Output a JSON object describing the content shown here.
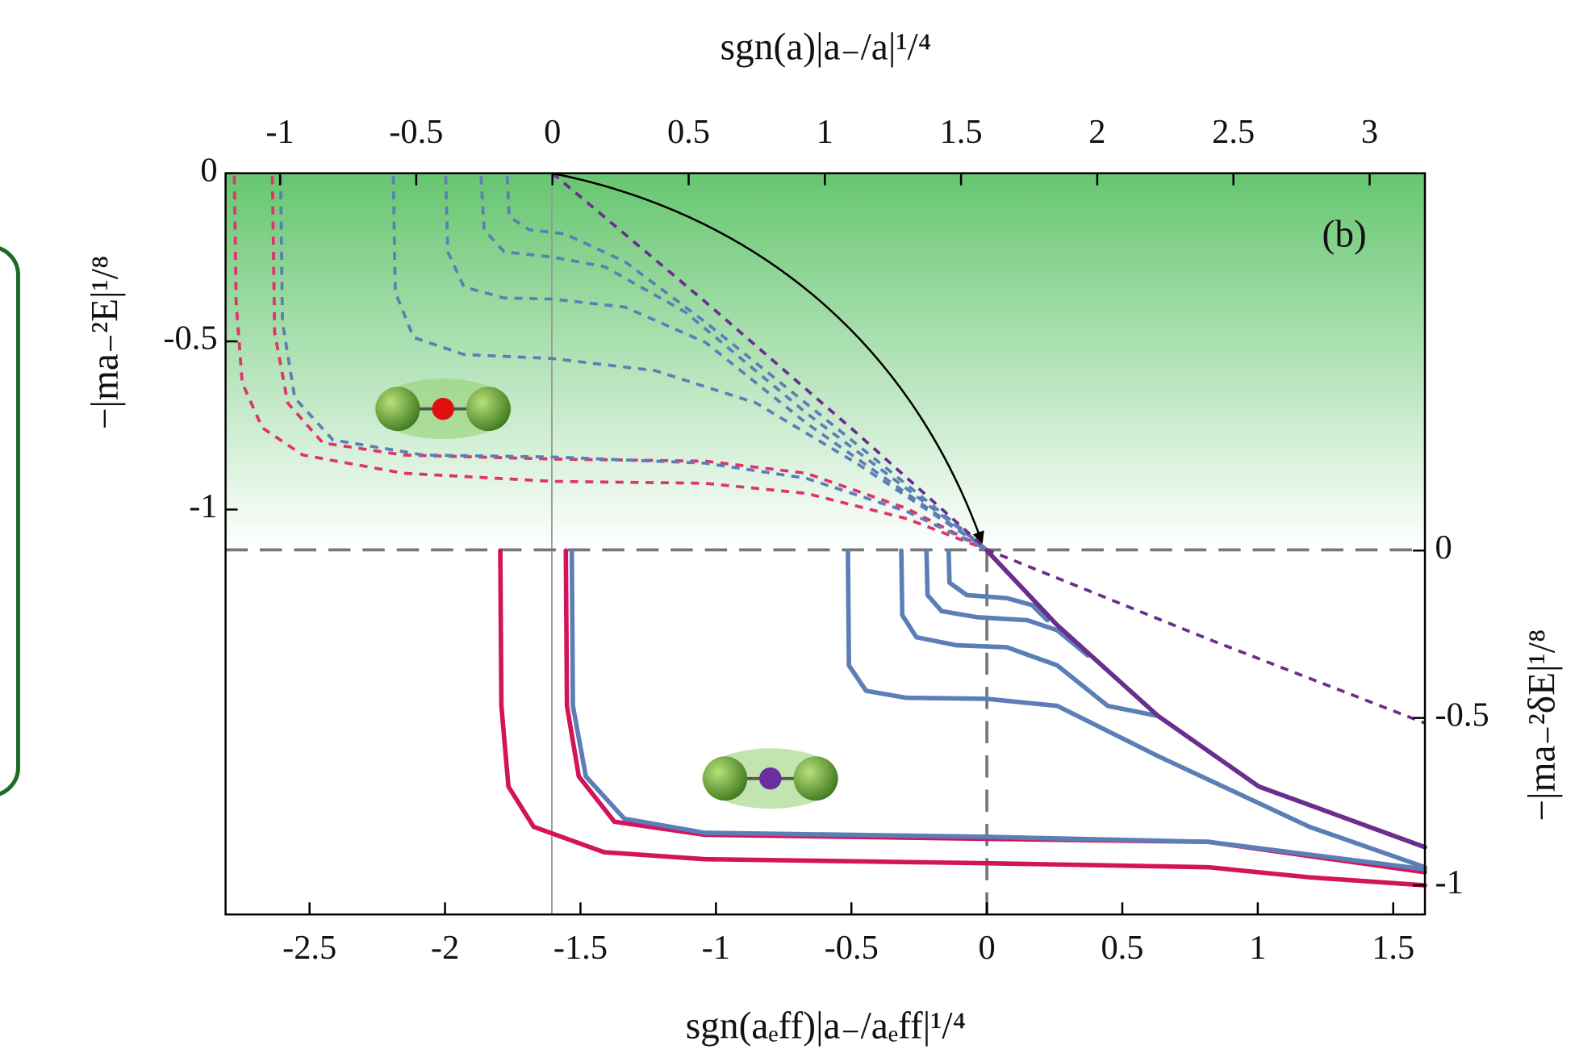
{
  "chart_data": {
    "type": "line",
    "title": "(b)",
    "x_label": "sgn(aₑff)|a₋/aₑff|¹/⁴",
    "x2_label": "sgn(a)|a₋/a|¹/⁴",
    "y_label": "−|ma₋²E|¹/⁸",
    "y2_label": "−|ma₋²δE|¹/⁸",
    "xlim": [
      -2.81,
      1.617
    ],
    "xticks": [
      -2.5,
      -2,
      -1.5,
      -1,
      -0.5,
      0,
      0.5,
      1,
      1.5
    ],
    "x2lim": [
      -1.2,
      3.203
    ],
    "x2ticks": [
      -1,
      -0.5,
      0,
      0.5,
      1,
      1.5,
      2,
      2.5,
      3
    ],
    "ylim": [
      -2.204,
      0
    ],
    "yticks": [
      -1,
      -0.5,
      0
    ],
    "y2lim": [
      -1.087,
      1.127
    ],
    "y2ticks": [
      -1,
      -0.5,
      0
    ],
    "series": [
      {
        "color": "#e0336e",
        "dashed": true,
        "xaxis": "x2",
        "x": [
          -1.168,
          -1.161,
          -1.139,
          -1.065,
          -0.917,
          -0.547,
          0,
          0.562,
          0.932,
          1.301,
          1.597
        ],
        "values": [
          -0.009,
          -0.383,
          -0.623,
          -0.757,
          -0.838,
          -0.892,
          -0.916,
          -0.922,
          -0.952,
          -1.027,
          -1.12
        ]
      },
      {
        "color": "#e0336e",
        "dashed": true,
        "xaxis": "x2",
        "x": [
          -1.028,
          -1.02,
          -0.972,
          -0.843,
          -0.547,
          0,
          0.562,
          0.932,
          1.301,
          1.597
        ],
        "values": [
          -0.009,
          -0.473,
          -0.683,
          -0.802,
          -0.838,
          -0.85,
          -0.856,
          -0.892,
          -0.997,
          -1.12
        ]
      },
      {
        "color": "#5b7fb5",
        "dashed": true,
        "xaxis": "x2",
        "x": [
          -0.998,
          -0.991,
          -0.946,
          -0.806,
          -0.473,
          0,
          0.562,
          0.932,
          1.301,
          1.597
        ],
        "values": [
          -0.009,
          -0.443,
          -0.668,
          -0.793,
          -0.838,
          -0.844,
          -0.862,
          -0.907,
          -1.006,
          -1.12
        ]
      },
      {
        "color": "#5b7fb5",
        "dashed": true,
        "xaxis": "x2",
        "x": [
          -0.584,
          -0.577,
          -0.51,
          -0.325,
          0,
          0.377,
          0.747,
          1.116,
          1.597
        ],
        "values": [
          -0.009,
          -0.353,
          -0.488,
          -0.539,
          -0.551,
          -0.587,
          -0.683,
          -0.862,
          -1.12
        ]
      },
      {
        "color": "#5b7fb5",
        "dashed": true,
        "xaxis": "x2",
        "x": [
          -0.392,
          -0.384,
          -0.325,
          -0.177,
          0,
          0.266,
          0.562,
          0.932,
          1.597
        ],
        "values": [
          -0.009,
          -0.234,
          -0.338,
          -0.371,
          -0.374,
          -0.398,
          -0.503,
          -0.743,
          -1.12
        ]
      },
      {
        "color": "#5b7fb5",
        "dashed": true,
        "xaxis": "x2",
        "x": [
          -0.262,
          -0.251,
          -0.177,
          0,
          0.192,
          0.488,
          0.932,
          1.597
        ],
        "values": [
          -0.009,
          -0.168,
          -0.234,
          -0.249,
          -0.278,
          -0.413,
          -0.713,
          -1.12
        ]
      },
      {
        "color": "#5b7fb5",
        "dashed": true,
        "xaxis": "x2",
        "x": [
          -0.166,
          -0.159,
          -0.085,
          0.044,
          0.266,
          0.562,
          1.597
        ],
        "values": [
          -0.009,
          -0.129,
          -0.168,
          -0.18,
          -0.263,
          -0.443,
          -1.12
        ]
      },
      {
        "color": "#6a2e8c",
        "dashed": true,
        "xaxis": "x2",
        "x": [
          0,
          0.562,
          1.116,
          1.597,
          2.41,
          3.203
        ],
        "values": [
          0,
          -0.383,
          -0.772,
          -1.12,
          -1.386,
          -1.635
        ]
      },
      {
        "color": "#d4145a",
        "axis": "y2",
        "x": [
          -1.796,
          -1.792,
          -1.766,
          -1.673,
          -1.413,
          -1.041,
          0,
          0.818,
          1.19,
          1.617
        ],
        "values": [
          0,
          -0.464,
          -0.705,
          -0.825,
          -0.901,
          -0.922,
          -0.934,
          -0.946,
          -0.976,
          -1.0
        ]
      },
      {
        "color": "#d4145a",
        "axis": "y2",
        "x": [
          -1.554,
          -1.55,
          -1.506,
          -1.375,
          -1.041,
          0,
          0.818,
          1.617
        ],
        "values": [
          0,
          -0.464,
          -0.675,
          -0.81,
          -0.849,
          -0.861,
          -0.87,
          -0.961
        ]
      },
      {
        "color": "#5b7fb5",
        "axis": "y2",
        "x": [
          -1.532,
          -1.528,
          -1.48,
          -1.338,
          -1.041,
          0,
          0.818,
          1.617
        ],
        "values": [
          0,
          -0.464,
          -0.675,
          -0.801,
          -0.843,
          -0.855,
          -0.87,
          -0.952
        ]
      },
      {
        "color": "#5b7fb5",
        "axis": "y2",
        "x": [
          -0.513,
          -0.509,
          -0.446,
          -0.297,
          0,
          0.26,
          0.632,
          1.19,
          1.617
        ],
        "values": [
          0,
          -0.343,
          -0.419,
          -0.44,
          -0.443,
          -0.464,
          -0.614,
          -0.825,
          -0.946
        ]
      },
      {
        "color": "#5b7fb5",
        "axis": "y2",
        "x": [
          -0.316,
          -0.312,
          -0.26,
          -0.112,
          0.074,
          0.26,
          0.446,
          0.632
        ],
        "values": [
          0,
          -0.193,
          -0.259,
          -0.283,
          -0.289,
          -0.343,
          -0.464,
          -0.494
        ]
      },
      {
        "color": "#5b7fb5",
        "axis": "y2",
        "x": [
          -0.223,
          -0.219,
          -0.167,
          -0.037,
          0.149,
          0.26,
          0.372
        ],
        "values": [
          0,
          -0.133,
          -0.181,
          -0.199,
          -0.208,
          -0.238,
          -0.313
        ]
      },
      {
        "color": "#5b7fb5",
        "axis": "y2",
        "x": [
          -0.141,
          -0.138,
          -0.074,
          0.074,
          0.167,
          0.223
        ],
        "values": [
          0,
          -0.096,
          -0.133,
          -0.142,
          -0.163,
          -0.208
        ]
      },
      {
        "color": "#6a2e8c",
        "axis": "y2",
        "x": [
          0,
          0.26,
          0.632,
          1.004,
          1.617
        ],
        "values": [
          0,
          -0.223,
          -0.494,
          -0.705,
          -0.886
        ]
      }
    ]
  }
}
